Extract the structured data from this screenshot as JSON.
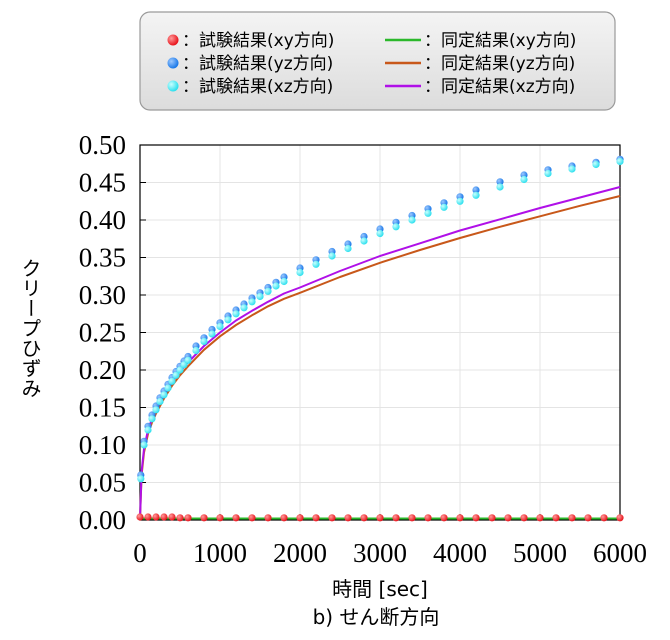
{
  "chart_data": {
    "type": "scatter",
    "caption": "b) せん断方向",
    "xlabel": "時間 [sec]",
    "ylabel": "クリープひずみ",
    "xlim": [
      0,
      6000
    ],
    "ylim": [
      0,
      0.5
    ],
    "xticks": [
      "0",
      "1000",
      "2000",
      "3000",
      "4000",
      "5000",
      "6000"
    ],
    "yticks": [
      "0.00",
      "0.05",
      "0.10",
      "0.15",
      "0.20",
      "0.25",
      "0.30",
      "0.35",
      "0.40",
      "0.45",
      "0.50"
    ],
    "grid": true,
    "legend_position": "top",
    "series": [
      {
        "name": "：試験結果(xy方向)",
        "kind": "marker",
        "color": "#e8141c",
        "x": [
          0,
          100,
          200,
          300,
          400,
          500,
          600,
          800,
          1000,
          1200,
          1400,
          1600,
          1800,
          2000,
          2200,
          2400,
          2600,
          2800,
          3000,
          3200,
          3400,
          3600,
          3800,
          4000,
          4200,
          4400,
          4600,
          4800,
          5000,
          5200,
          5400,
          5600,
          5800,
          6000
        ],
        "y": [
          0.004,
          0.004,
          0.004,
          0.004,
          0.004,
          0.003,
          0.003,
          0.003,
          0.003,
          0.003,
          0.003,
          0.003,
          0.003,
          0.003,
          0.003,
          0.003,
          0.003,
          0.003,
          0.003,
          0.003,
          0.003,
          0.003,
          0.003,
          0.003,
          0.003,
          0.003,
          0.003,
          0.003,
          0.003,
          0.003,
          0.003,
          0.003,
          0.003,
          0.003
        ]
      },
      {
        "name": "：試験結果(yz方向)",
        "kind": "marker",
        "color": "#1a78e8",
        "x": [
          10,
          50,
          100,
          150,
          200,
          250,
          300,
          350,
          400,
          450,
          500,
          550,
          600,
          700,
          800,
          900,
          1000,
          1100,
          1200,
          1300,
          1400,
          1500,
          1600,
          1700,
          1800,
          2000,
          2200,
          2400,
          2600,
          2800,
          3000,
          3200,
          3400,
          3600,
          3800,
          4000,
          4200,
          4500,
          4800,
          5100,
          5400,
          5700,
          6000
        ],
        "y": [
          0.06,
          0.105,
          0.125,
          0.14,
          0.152,
          0.163,
          0.172,
          0.181,
          0.19,
          0.198,
          0.205,
          0.212,
          0.218,
          0.232,
          0.243,
          0.254,
          0.263,
          0.272,
          0.28,
          0.288,
          0.296,
          0.303,
          0.31,
          0.317,
          0.324,
          0.336,
          0.347,
          0.358,
          0.368,
          0.378,
          0.388,
          0.397,
          0.406,
          0.415,
          0.423,
          0.431,
          0.44,
          0.451,
          0.46,
          0.467,
          0.472,
          0.477,
          0.481
        ]
      },
      {
        "name": "：試験結果(xz方向)",
        "kind": "marker",
        "color": "#2ee0ee",
        "x": [
          10,
          50,
          100,
          150,
          200,
          250,
          300,
          350,
          400,
          450,
          500,
          550,
          600,
          700,
          800,
          900,
          1000,
          1100,
          1200,
          1300,
          1400,
          1500,
          1600,
          1700,
          1800,
          2000,
          2200,
          2400,
          2600,
          2800,
          3000,
          3200,
          3400,
          3600,
          3800,
          4000,
          4200,
          4500,
          4800,
          5100,
          5400,
          5700,
          6000
        ],
        "y": [
          0.055,
          0.1,
          0.12,
          0.135,
          0.147,
          0.158,
          0.167,
          0.176,
          0.185,
          0.193,
          0.2,
          0.207,
          0.213,
          0.226,
          0.238,
          0.248,
          0.258,
          0.267,
          0.275,
          0.283,
          0.291,
          0.298,
          0.305,
          0.312,
          0.318,
          0.33,
          0.341,
          0.352,
          0.362,
          0.372,
          0.382,
          0.391,
          0.4,
          0.409,
          0.417,
          0.425,
          0.433,
          0.444,
          0.454,
          0.462,
          0.468,
          0.474,
          0.478
        ]
      },
      {
        "name": "：同定結果(xy方向)",
        "kind": "line",
        "color": "#2bb82b",
        "x": [
          0,
          600,
          1200,
          1800,
          2400,
          3000,
          3600,
          4200,
          4800,
          5400,
          6000
        ],
        "y": [
          0.002,
          0.002,
          0.002,
          0.002,
          0.002,
          0.002,
          0.002,
          0.002,
          0.002,
          0.002,
          0.002
        ]
      },
      {
        "name": "：同定結果(yz方向)",
        "kind": "line",
        "color": "#c8581a",
        "x": [
          0,
          20,
          50,
          100,
          150,
          200,
          300,
          400,
          500,
          600,
          800,
          1000,
          1200,
          1400,
          1600,
          1800,
          2000,
          2500,
          3000,
          3500,
          4000,
          4500,
          5000,
          5500,
          6000
        ],
        "y": [
          0.0,
          0.06,
          0.09,
          0.115,
          0.13,
          0.142,
          0.162,
          0.179,
          0.193,
          0.205,
          0.227,
          0.245,
          0.26,
          0.273,
          0.285,
          0.295,
          0.303,
          0.324,
          0.343,
          0.36,
          0.376,
          0.391,
          0.405,
          0.419,
          0.432
        ]
      },
      {
        "name": "：同定結果(xz方向)",
        "kind": "line",
        "color": "#b010e8",
        "x": [
          0,
          20,
          50,
          100,
          150,
          200,
          300,
          400,
          500,
          600,
          800,
          1000,
          1200,
          1400,
          1600,
          1800,
          2000,
          2500,
          3000,
          3500,
          4000,
          4500,
          5000,
          5500,
          6000
        ],
        "y": [
          0.0,
          0.065,
          0.095,
          0.12,
          0.135,
          0.147,
          0.167,
          0.184,
          0.198,
          0.21,
          0.232,
          0.25,
          0.266,
          0.279,
          0.291,
          0.302,
          0.31,
          0.332,
          0.352,
          0.369,
          0.386,
          0.401,
          0.416,
          0.43,
          0.444
        ]
      }
    ]
  }
}
